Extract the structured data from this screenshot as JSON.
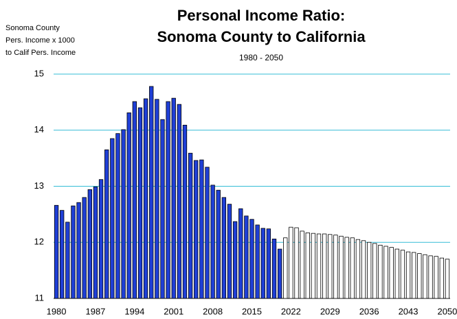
{
  "chart_data": {
    "type": "bar",
    "title": [
      "Personal Income Ratio:",
      "Sonoma County to California"
    ],
    "subtitle": "1980 - 2050",
    "y_label": [
      "Sonoma County",
      "Pers. Income x 1000",
      "to Calif Pers. Income"
    ],
    "categories": [
      "1980",
      null,
      null,
      null,
      null,
      null,
      null,
      "1987",
      null,
      null,
      null,
      null,
      null,
      null,
      "1994",
      null,
      null,
      null,
      null,
      null,
      null,
      "2001",
      null,
      null,
      null,
      null,
      null,
      null,
      "2008",
      null,
      null,
      null,
      null,
      null,
      null,
      "2015",
      null,
      null,
      null,
      null,
      null,
      null,
      "2022",
      null,
      null,
      null,
      null,
      null,
      null,
      "2029",
      null,
      null,
      null,
      null,
      null,
      null,
      "2036",
      null,
      null,
      null,
      null,
      null,
      null,
      "2043",
      null,
      null,
      null,
      null,
      null,
      null,
      "2050"
    ],
    "series": [
      {
        "color": "#1f3fd6",
        "values": [
          12.66,
          12.57,
          12.36,
          12.65,
          12.71,
          12.8,
          12.94,
          12.99,
          13.12,
          13.65,
          13.85,
          13.94,
          14.01,
          14.31,
          14.51,
          14.4,
          14.56,
          14.78,
          14.55,
          14.19,
          14.51,
          14.57,
          14.46,
          14.09,
          13.59,
          13.46,
          13.47,
          13.34,
          13.02,
          12.93,
          12.8,
          12.68,
          12.37,
          12.6,
          12.47,
          12.41,
          12.31,
          12.25,
          12.24,
          12.06,
          11.88,
          null,
          null,
          null,
          null,
          null,
          null,
          null,
          null,
          null,
          null,
          null,
          null,
          null,
          null,
          null,
          null,
          null,
          null,
          null,
          null,
          null,
          null,
          null,
          null,
          null,
          null,
          null,
          null,
          null,
          null
        ]
      },
      {
        "color": "#ffffff",
        "values": [
          null,
          null,
          null,
          null,
          null,
          null,
          null,
          null,
          null,
          null,
          null,
          null,
          null,
          null,
          null,
          null,
          null,
          null,
          null,
          null,
          null,
          null,
          null,
          null,
          null,
          null,
          null,
          null,
          null,
          null,
          null,
          null,
          null,
          null,
          null,
          null,
          null,
          null,
          null,
          null,
          null,
          12.08,
          12.27,
          12.26,
          12.2,
          12.17,
          12.16,
          12.15,
          12.15,
          12.14,
          12.13,
          12.11,
          12.09,
          12.08,
          12.05,
          12.03,
          12.0,
          11.98,
          11.95,
          11.93,
          11.91,
          11.88,
          11.86,
          11.83,
          11.82,
          11.8,
          11.78,
          11.76,
          11.75,
          11.72,
          11.7
        ]
      }
    ],
    "ylim": [
      11,
      15
    ],
    "yticks": [
      11,
      12,
      13,
      14,
      15
    ],
    "grid": true,
    "grid_color": "#33bcd6"
  }
}
